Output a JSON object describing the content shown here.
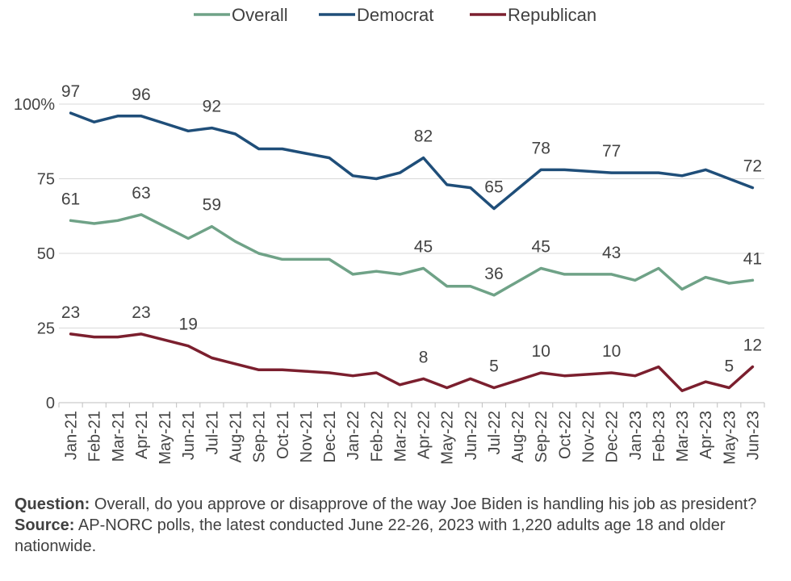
{
  "chart_data": {
    "type": "line",
    "categories": [
      "Jan-21",
      "Feb-21",
      "Mar-21",
      "Apr-21",
      "May-21",
      "Jun-21",
      "Jul-21",
      "Aug-21",
      "Sep-21",
      "Oct-21",
      "Nov-21",
      "Dec-21",
      "Jan-22",
      "Feb-22",
      "Mar-22",
      "Apr-22",
      "May-22",
      "Jun-22",
      "Jul-22",
      "Aug-22",
      "Sep-22",
      "Oct-22",
      "Nov-22",
      "Dec-22",
      "Jan-23",
      "Feb-23",
      "Mar-23",
      "Apr-23",
      "May-23",
      "Jun-23"
    ],
    "ylim": [
      0,
      100
    ],
    "yticks": [
      0,
      25,
      50,
      75,
      100
    ],
    "ytick_labels": [
      "0",
      "25",
      "50",
      "75",
      "100%"
    ],
    "grid": true,
    "legend_position": "top",
    "series": [
      {
        "name": "Overall",
        "color": "#6fa287",
        "values": [
          61,
          60,
          61,
          63,
          59,
          55,
          59,
          54,
          50,
          48,
          48,
          48,
          43,
          44,
          43,
          45,
          39,
          39,
          36,
          40.5,
          45,
          43,
          43,
          43,
          41,
          45,
          38,
          42,
          40,
          41
        ],
        "labels": [
          {
            "i": 0,
            "text": "61"
          },
          {
            "i": 3,
            "text": "63"
          },
          {
            "i": 6,
            "text": "59"
          },
          {
            "i": 15,
            "text": "45"
          },
          {
            "i": 18,
            "text": "36"
          },
          {
            "i": 20,
            "text": "45"
          },
          {
            "i": 23,
            "text": "43"
          },
          {
            "i": 29,
            "text": "41"
          }
        ]
      },
      {
        "name": "Democrat",
        "color": "#1f4e79",
        "values": [
          97,
          94,
          96,
          96,
          93.5,
          91,
          92,
          90,
          85,
          85,
          83.5,
          82,
          76,
          75,
          77,
          82,
          73,
          72,
          65,
          71.5,
          78,
          78,
          77.5,
          77,
          77,
          77,
          76,
          78,
          75,
          72
        ],
        "labels": [
          {
            "i": 0,
            "text": "97"
          },
          {
            "i": 3,
            "text": "96"
          },
          {
            "i": 6,
            "text": "92"
          },
          {
            "i": 15,
            "text": "82"
          },
          {
            "i": 18,
            "text": "65"
          },
          {
            "i": 20,
            "text": "78"
          },
          {
            "i": 23,
            "text": "77"
          },
          {
            "i": 29,
            "text": "72"
          }
        ]
      },
      {
        "name": "Republican",
        "color": "#7b1f2e",
        "values": [
          23,
          22,
          22,
          23,
          21,
          19,
          15,
          13,
          11,
          11,
          10.5,
          10,
          9,
          10,
          6,
          8,
          5,
          8,
          5,
          7.5,
          10,
          9,
          9.5,
          10,
          9,
          12,
          4,
          7,
          5,
          12
        ],
        "labels": [
          {
            "i": 0,
            "text": "23"
          },
          {
            "i": 3,
            "text": "23"
          },
          {
            "i": 5,
            "text": "19"
          },
          {
            "i": 15,
            "text": "8"
          },
          {
            "i": 18,
            "text": "5"
          },
          {
            "i": 20,
            "text": "10"
          },
          {
            "i": 23,
            "text": "10"
          },
          {
            "i": 28,
            "text": "5"
          },
          {
            "i": 29,
            "text": "12"
          }
        ]
      }
    ]
  },
  "footnote": {
    "question_label": "Question:",
    "question_text": " Overall, do you approve or disapprove of the way Joe Biden is handling his job as president?",
    "source_label": "Source:",
    "source_text": " AP-NORC polls, the latest conducted June 22-26, 2023 with 1,220  adults age 18 and older nationwide."
  }
}
